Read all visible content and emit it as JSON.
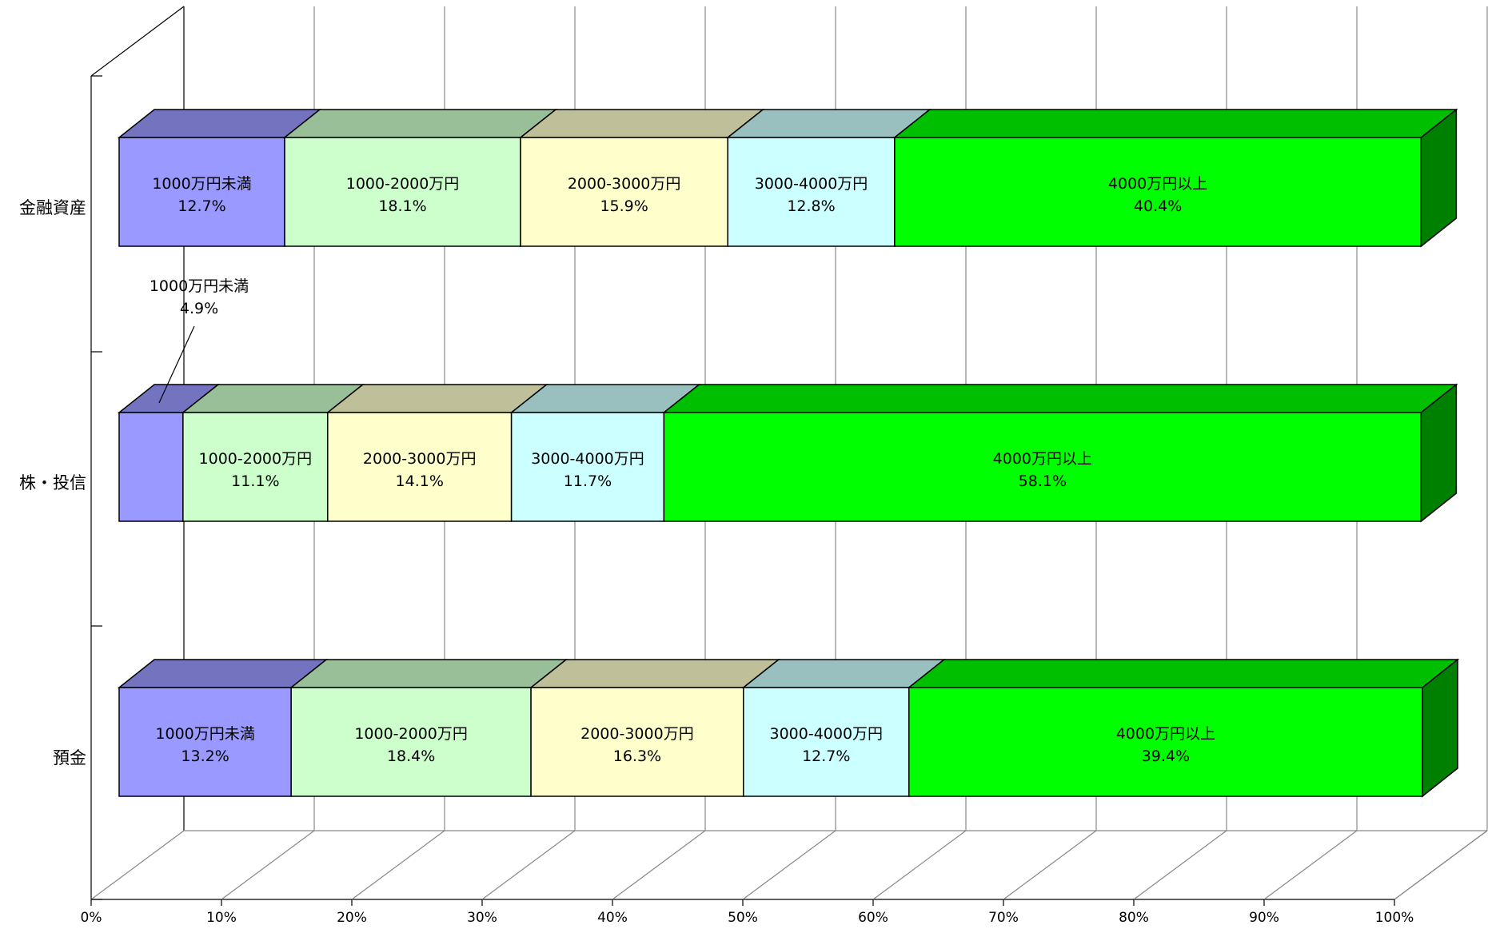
{
  "chart_data": {
    "type": "bar",
    "stacked": true,
    "percent": true,
    "orientation": "horizontal",
    "three_d": true,
    "categories": [
      "金融資産",
      "株・投信",
      "預金"
    ],
    "series": [
      {
        "name": "1000万円未満",
        "values": [
          12.7,
          4.9,
          13.2
        ]
      },
      {
        "name": "1000-2000万円",
        "values": [
          18.1,
          11.1,
          18.4
        ]
      },
      {
        "name": "2000-3000万円",
        "values": [
          15.9,
          14.1,
          16.3
        ]
      },
      {
        "name": "3000-4000万円",
        "values": [
          12.8,
          11.7,
          12.7
        ]
      },
      {
        "name": "4000万円以上",
        "values": [
          40.4,
          58.1,
          39.4
        ]
      }
    ],
    "data_labels": [
      [
        "1000万円未満\n12.7%",
        "1000-2000万円\n18.1%",
        "2000-3000万円\n15.9%",
        "3000-4000万円\n12.8%",
        "4000万円以上\n40.4%"
      ],
      [
        "1000万円未満\n4.9%",
        "1000-2000万円\n11.1%",
        "2000-3000万円\n14.1%",
        "3000-4000万円\n11.7%",
        "4000万円以上\n58.1%"
      ],
      [
        "1000万円未満\n13.2%",
        "1000-2000万円\n18.4%",
        "2000-3000万円\n16.3%",
        "3000-4000万円\n12.7%",
        "4000万円以上\n39.4%"
      ]
    ],
    "xticks": [
      "0%",
      "10%",
      "20%",
      "30%",
      "40%",
      "50%",
      "60%",
      "70%",
      "80%",
      "90%",
      "100%"
    ],
    "xlim": [
      0,
      100
    ],
    "grid": true,
    "legend": "none",
    "colors": {
      "front": [
        "#9999ff",
        "#ccffcc",
        "#ffffcc",
        "#ccffff",
        "#00ff00"
      ],
      "top": [
        "#7373bf",
        "#99bf99",
        "#bfbf99",
        "#99bfbf",
        "#00bf00"
      ],
      "side": [
        "#4d4d80",
        "#668066",
        "#80806a",
        "#668080",
        "#008000"
      ]
    }
  }
}
